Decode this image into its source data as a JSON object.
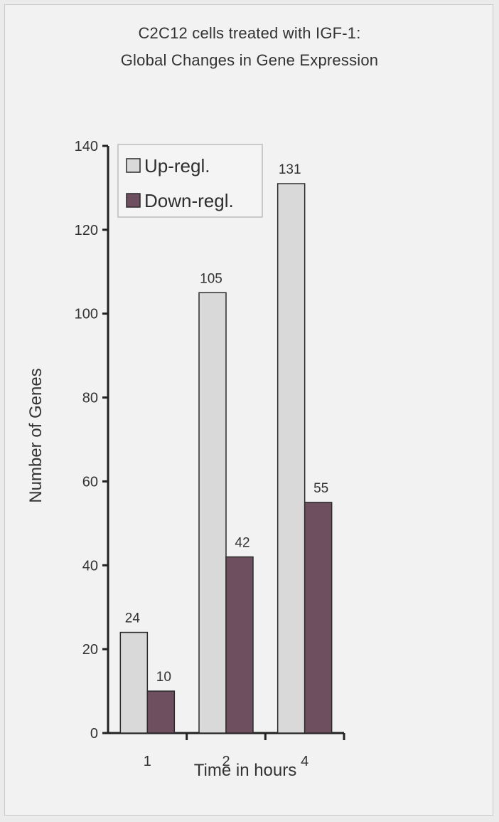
{
  "chart_data": {
    "type": "bar",
    "title": "C2C12 cells treated with IGF-1:",
    "subtitle": "Global Changes in Gene Expression",
    "xlabel": "Time in hours",
    "ylabel": "Number of Genes",
    "categories": [
      "1",
      "2",
      "4"
    ],
    "series": [
      {
        "name": "Up-regl.",
        "values": [
          24,
          105,
          131
        ],
        "color": "#d9d9d9"
      },
      {
        "name": "Down-regl.",
        "values": [
          10,
          42,
          55
        ],
        "color": "#6e4f5f"
      }
    ],
    "ylim": [
      0,
      140
    ],
    "yticks": [
      0,
      20,
      40,
      60,
      80,
      100,
      120,
      140
    ],
    "grid": false,
    "legend_position": "top-left"
  }
}
